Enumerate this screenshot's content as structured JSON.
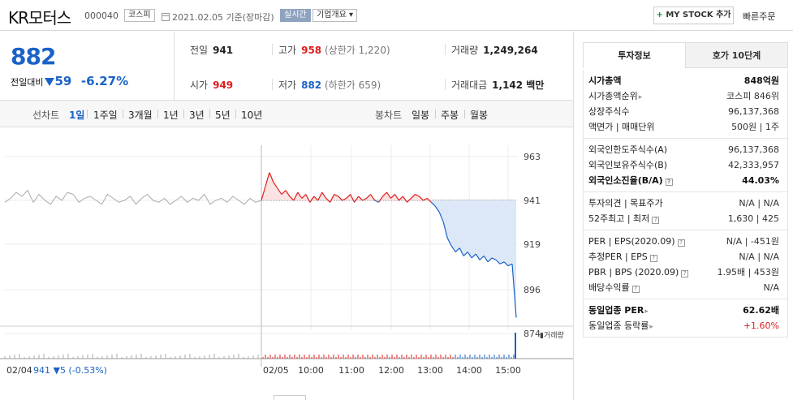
{
  "header": {
    "company_name": "KR모터스",
    "code": "000040",
    "market_tag": "코스피",
    "date_info": "2021.02.05  기준(장마감)",
    "realtime_tag": "실시간",
    "overview_tag": "기업개요 ▾",
    "mystock_label": "MY STOCK 추가",
    "quick_order": "빠른주문"
  },
  "price": {
    "now": "882",
    "change_label": "전일대비",
    "change": "59",
    "change_pct": "-6.27%",
    "prev_label": "전일",
    "prev": "941",
    "high_label": "고가",
    "high": "958",
    "upper_limit": "(상한가 1,220)",
    "volume_label": "거래량",
    "volume": "1,249,264",
    "open_label": "시가",
    "open": "949",
    "low_label": "저가",
    "low": "882",
    "lower_limit": "(하한가 659)",
    "amount_label": "거래대금",
    "amount": "1,142 백만"
  },
  "period": {
    "line_label": "선차트",
    "line_items": [
      "1일",
      "1주일",
      "3개월",
      "1년",
      "3년",
      "5년",
      "10년"
    ],
    "active": "1일",
    "candle_label": "봉차트",
    "candle_items": [
      "일봉",
      "주봉",
      "월봉"
    ]
  },
  "tabs": [
    "투자정보",
    "호가 10단계"
  ],
  "info": {
    "g1": [
      {
        "k": "시가총액",
        "v": "848억원",
        "strong": true
      },
      {
        "k": "시가총액순위",
        "v": "코스피 846위",
        "arrow": true
      },
      {
        "k": "상장주식수",
        "v": "96,137,368"
      },
      {
        "k": "액면가 | 매매단위",
        "v": "500원 | 1주"
      }
    ],
    "g2": [
      {
        "k": "외국인한도주식수(A)",
        "v": "96,137,368"
      },
      {
        "k": "외국인보유주식수(B)",
        "v": "42,333,957"
      },
      {
        "k": "외국인소진율(B/A)",
        "v": "44.03%",
        "strong": true,
        "q": true
      }
    ],
    "g3": [
      {
        "k": "투자의견 | 목표주가",
        "v": "N/A | N/A"
      },
      {
        "k": "52주최고 | 최저",
        "v": "1,630 | 425",
        "q": true
      }
    ],
    "g4": [
      {
        "k": "PER | EPS(2020.09)",
        "v": "N/A | -451원",
        "q": true
      },
      {
        "k": "추정PER | EPS",
        "v": "N/A | N/A",
        "q": true
      },
      {
        "k": "PBR | BPS (2020.09)",
        "v": "1.95배 | 453원",
        "q": true
      },
      {
        "k": "배당수익률",
        "v": "N/A",
        "q": true
      }
    ],
    "g5": [
      {
        "k": "동일업종 PER",
        "v": "62.62배",
        "strong": true,
        "arrow": true
      },
      {
        "k": "동일업종 등락률",
        "v": "+1.60%",
        "arrow": true,
        "red": true
      }
    ]
  },
  "colors": {
    "up": "#e01c1c",
    "down": "#1b62c7",
    "ref_fill": "#dce8f7"
  },
  "chart_data": {
    "type": "line",
    "y_ticks": [
      "963",
      "941",
      "919",
      "896",
      "874"
    ],
    "ylim": [
      874,
      963
    ],
    "reference_price": 941,
    "prev_day_label": "02/04",
    "prev_day_close": "941",
    "prev_day_change": "▼5 (-0.53%)",
    "day_label": "02/05",
    "x_ticks": [
      "10:00",
      "11:00",
      "12:00",
      "13:00",
      "14:00",
      "15:00"
    ],
    "volume_legend": "거래량",
    "prev_day_series": [
      940,
      942,
      945,
      943,
      946,
      940,
      944,
      941,
      939,
      943,
      941,
      945,
      944,
      940,
      942,
      943,
      941,
      939,
      944,
      942,
      940,
      941,
      943,
      939,
      942,
      944,
      941,
      940,
      942,
      939,
      941,
      943,
      940,
      942,
      941,
      944,
      939,
      941,
      942,
      940,
      943,
      941,
      939,
      942,
      940,
      941
    ],
    "day_series": [
      941,
      948,
      955,
      950,
      947,
      944,
      946,
      943,
      941,
      945,
      942,
      944,
      940,
      943,
      941,
      945,
      942,
      940,
      944,
      943,
      941,
      942,
      944,
      940,
      943,
      941,
      942,
      944,
      941,
      940,
      943,
      945,
      942,
      944,
      941,
      943,
      940,
      942,
      944,
      943,
      941,
      942,
      940,
      938,
      935,
      930,
      922,
      918,
      915,
      917,
      913,
      915,
      912,
      914,
      911,
      913,
      910,
      912,
      911,
      909,
      910,
      908,
      909,
      882
    ]
  }
}
